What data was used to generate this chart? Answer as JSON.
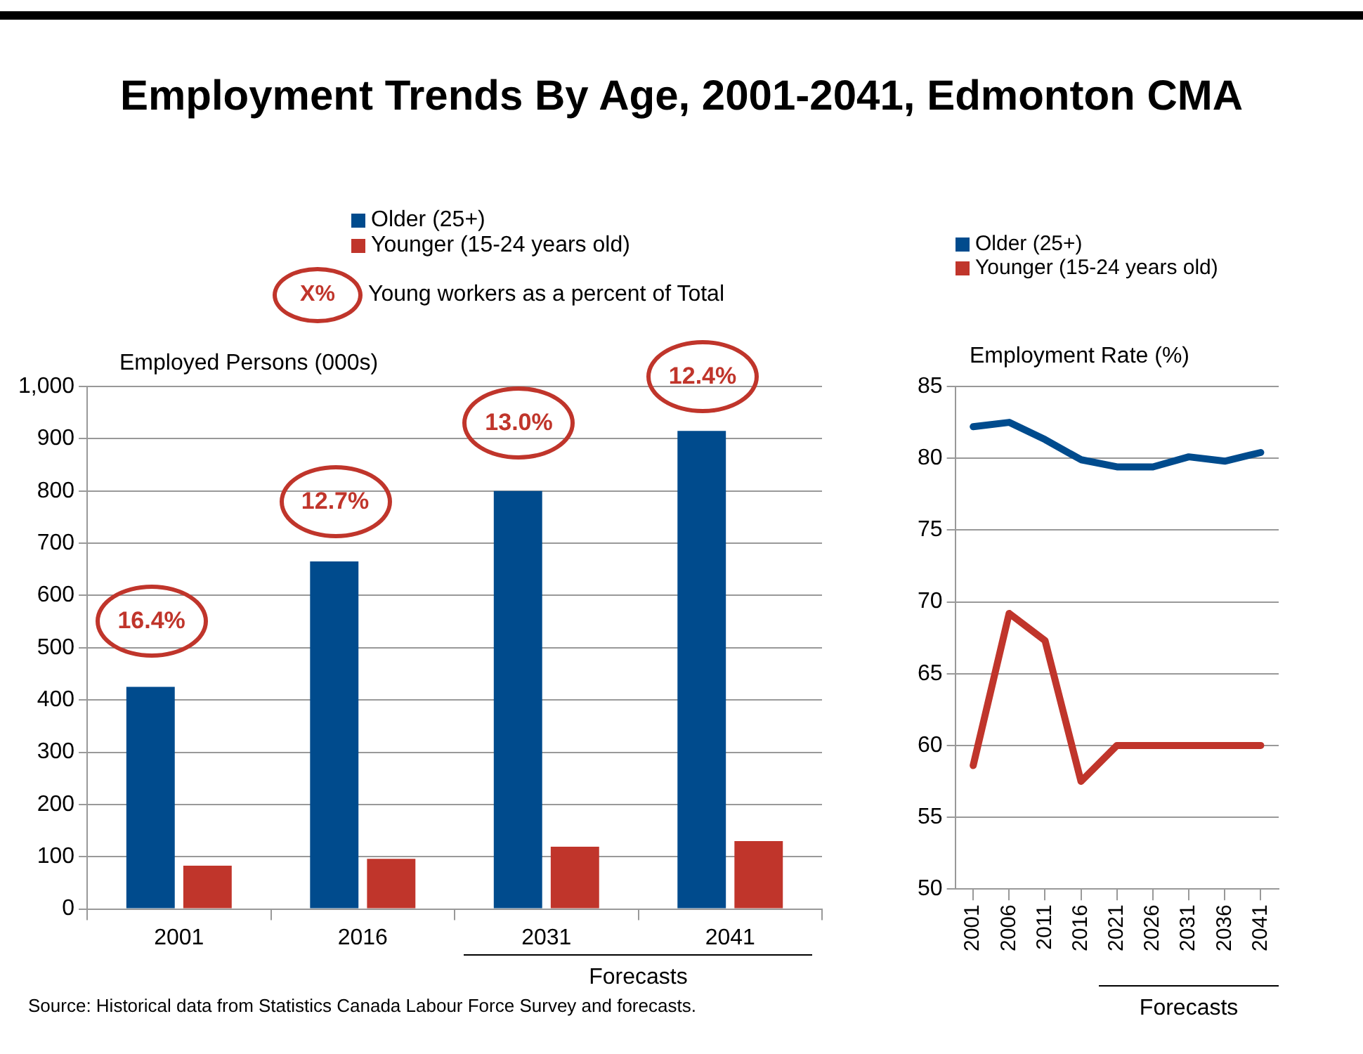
{
  "chart_data": [
    {
      "type": "bar",
      "title": "Employment Trends By Age, 2001-2041, Edmonton CMA",
      "ylabel": "Employed Persons (000s)",
      "categories": [
        "2001",
        "2016",
        "2031",
        "2041"
      ],
      "series": [
        {
          "name": "Older (25+)",
          "color": "#004b8d",
          "values": [
            425,
            665,
            800,
            915
          ]
        },
        {
          "name": "Younger (15-24 years old)",
          "color": "#c0352b",
          "values": [
            83,
            96,
            119,
            130
          ]
        }
      ],
      "ylim": [
        0,
        1000
      ],
      "yticks": [
        0,
        100,
        200,
        300,
        400,
        500,
        600,
        700,
        800,
        900,
        {
          "value": 1000,
          "label": "1,000"
        }
      ],
      "grid": "y",
      "legend": "top",
      "annotations": [
        "X%",
        "Young workers as a percent of Total",
        "16.4%",
        "12.7%",
        "13.0%",
        "12.4%",
        "Forecasts",
        "Source: Historical data from Statistics Canada Labour Force Survey and forecasts."
      ]
    },
    {
      "type": "line",
      "ylabel": "Employment Rate (%)",
      "categories": [
        "2001",
        "2006",
        "2011",
        "2016",
        "2021",
        "2026",
        "2031",
        "2036",
        "2041"
      ],
      "series": [
        {
          "name": "Older (25+)",
          "color": "#004b8d",
          "values": [
            82.2,
            82.5,
            81.3,
            79.9,
            79.4,
            79.4,
            80.1,
            79.8,
            80.4
          ]
        },
        {
          "name": "Younger (15-24 years old)",
          "color": "#c0352b",
          "values": [
            58.6,
            69.2,
            67.3,
            57.5,
            60,
            60,
            60,
            60,
            60
          ]
        }
      ],
      "ylim": [
        50,
        85
      ],
      "yticks": [
        50,
        55,
        60,
        65,
        70,
        75,
        80,
        85
      ],
      "grid": "y",
      "legend": "top",
      "marker": "none",
      "line_style": "solid",
      "annotations": [
        "Forecasts"
      ]
    }
  ]
}
